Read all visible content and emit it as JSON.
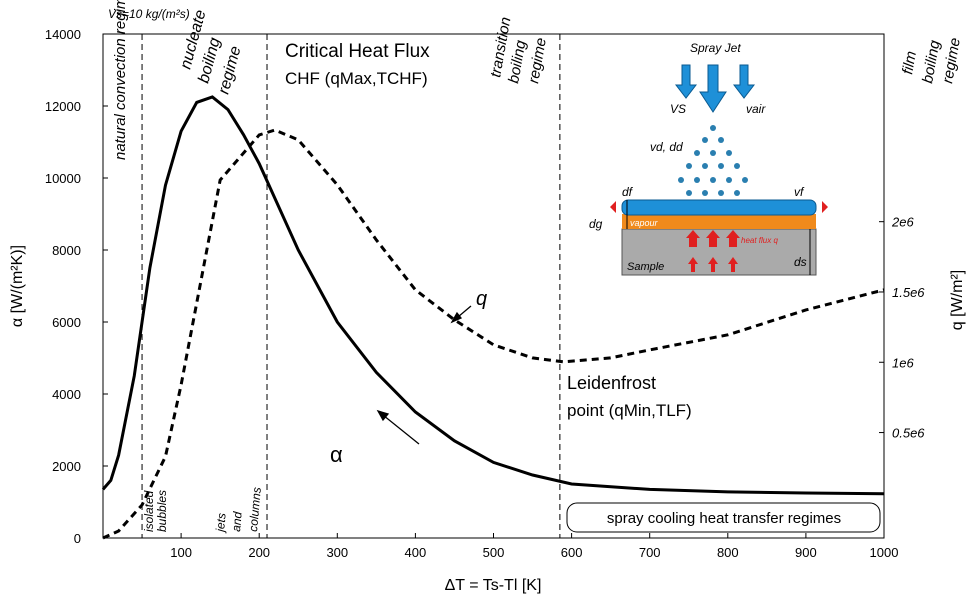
{
  "chart_data": {
    "type": "line",
    "top_note": "Vs=10 kg/(m²s)",
    "x_label": "ΔT = Ts-Tl [K]",
    "y_label": "α [W/(m²K)]",
    "y2_label": "q [W/m²]",
    "xlim": [
      0,
      1000
    ],
    "xticks": [
      100,
      200,
      300,
      400,
      500,
      600,
      700,
      800,
      900,
      1000
    ],
    "ylim": [
      0,
      14000
    ],
    "yticks": [
      0,
      2000,
      4000,
      6000,
      8000,
      10000,
      12000,
      14000
    ],
    "y2lim": [
      -250000,
      3335000
    ],
    "y2ticks": [
      {
        "value": 500000,
        "label": "0.5e6"
      },
      {
        "value": 1000000,
        "label": "1e6"
      },
      {
        "value": 1500000,
        "label": "1.5e6"
      },
      {
        "value": 2000000,
        "label": "2e6"
      }
    ],
    "grid": false,
    "regime_boundaries": [
      50,
      210,
      585
    ],
    "series": [
      {
        "name": "α",
        "color": "#000000",
        "dash": "solid",
        "x": [
          0,
          10,
          20,
          40,
          60,
          80,
          100,
          120,
          140,
          160,
          180,
          200,
          250,
          300,
          350,
          400,
          450,
          500,
          550,
          600,
          700,
          800,
          900,
          1000
        ],
        "values": [
          1350,
          1600,
          2300,
          4500,
          7500,
          9800,
          11300,
          12100,
          12250,
          11900,
          11200,
          10400,
          8000,
          6000,
          4600,
          3500,
          2700,
          2100,
          1750,
          1500,
          1350,
          1280,
          1250,
          1230
        ]
      },
      {
        "name": "q",
        "color": "#000000",
        "dash": "dashed",
        "axis": "y2",
        "x": [
          0,
          20,
          50,
          80,
          100,
          150,
          200,
          220,
          250,
          300,
          350,
          400,
          450,
          500,
          550,
          590,
          650,
          700,
          800,
          900,
          1000
        ],
        "values": [
          -250000,
          -200000,
          -15000,
          330000,
          839000,
          2296000,
          2617000,
          2652000,
          2582000,
          2262000,
          1870000,
          1515000,
          1302000,
          1124000,
          1031000,
          1003000,
          1031000,
          1088000,
          1195000,
          1372000,
          1515000
        ]
      }
    ],
    "annotations": [
      "natural convection regime",
      "nucleate",
      "boiling",
      "regime",
      "Critical Heat Flux",
      "CHF (qMax,TCHF)",
      "transition",
      "boiling",
      "regime",
      "film",
      "boiling",
      "regime",
      "q",
      "α",
      "Leidenfrost",
      "point (qMin,TLF)",
      "isolated",
      "bubbles",
      "jets",
      "and",
      "columns",
      "spray cooling heat transfer regimes"
    ],
    "inset": {
      "labels": [
        "Spray Jet",
        "VS",
        "vair",
        "vd, dd",
        "df",
        "vf",
        "dg",
        "vapour",
        "heat flux q",
        "Sample",
        "ds"
      ]
    }
  }
}
